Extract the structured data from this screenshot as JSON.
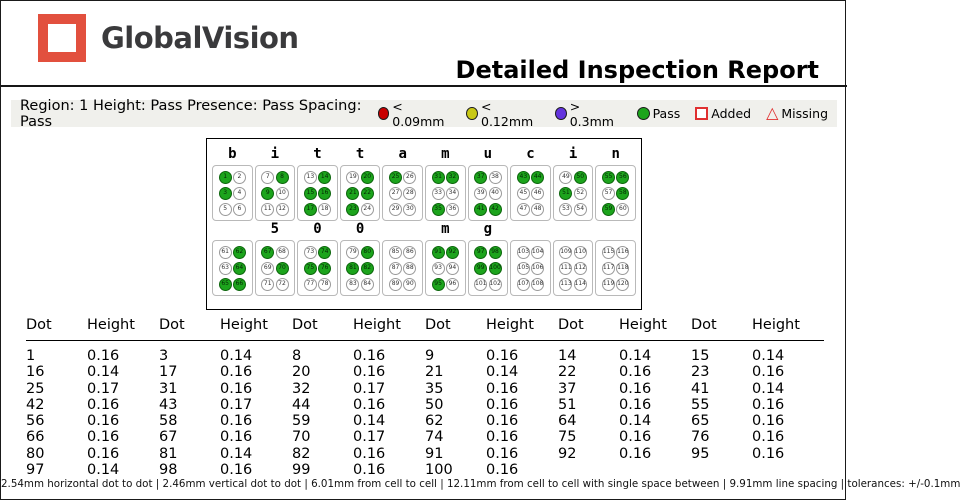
{
  "header": {
    "logo_text": "GlobalVision",
    "title": "Detailed Inspection Report"
  },
  "region_bar": {
    "summary": "Region: 1 Height: Pass Presence: Pass Spacing: Pass",
    "legend": [
      {
        "shape": "circle",
        "color": "#c80000",
        "label": "< 0.09mm"
      },
      {
        "shape": "circle",
        "color": "#c8c814",
        "label": "< 0.12mm"
      },
      {
        "shape": "circle",
        "color": "#6333dd",
        "label": "> 0.3mm"
      },
      {
        "shape": "circle",
        "color": "#1ca41c",
        "label": "Pass"
      },
      {
        "shape": "square",
        "color": "#e03030",
        "label": "Added"
      },
      {
        "shape": "triangle",
        "color": "#e03030",
        "label": "Missing"
      }
    ]
  },
  "braille": {
    "pass_color": "#1ca41c",
    "rows": [
      {
        "cells": [
          {
            "label": "b",
            "start": 1,
            "dots": [
              1,
              3
            ]
          },
          {
            "label": "i",
            "start": 7,
            "dots": [
              8,
              9
            ]
          },
          {
            "label": "t",
            "start": 13,
            "dots": [
              14,
              15,
              16,
              17
            ]
          },
          {
            "label": "t",
            "start": 19,
            "dots": [
              20,
              21,
              22,
              23
            ]
          },
          {
            "label": "a",
            "start": 25,
            "dots": [
              25
            ]
          },
          {
            "label": "m",
            "start": 31,
            "dots": [
              31,
              32,
              35
            ]
          },
          {
            "label": "u",
            "start": 37,
            "dots": [
              37,
              41,
              42
            ]
          },
          {
            "label": "c",
            "start": 43,
            "dots": [
              43,
              44
            ]
          },
          {
            "label": "i",
            "start": 49,
            "dots": [
              50,
              51
            ]
          },
          {
            "label": "n",
            "start": 55,
            "dots": [
              55,
              56,
              58,
              59
            ]
          }
        ]
      },
      {
        "cells": [
          {
            "label": "",
            "start": 61,
            "dots": [
              62,
              64,
              65,
              66
            ]
          },
          {
            "label": "5",
            "start": 67,
            "dots": [
              67,
              70
            ]
          },
          {
            "label": "0",
            "start": 73,
            "dots": [
              74,
              75,
              76
            ]
          },
          {
            "label": "0",
            "start": 79,
            "dots": [
              80,
              81,
              82
            ]
          },
          {
            "label": "",
            "start": 85,
            "dots": []
          },
          {
            "label": "m",
            "start": 91,
            "dots": [
              91,
              92,
              95
            ]
          },
          {
            "label": "g",
            "start": 97,
            "dots": [
              97,
              98,
              99,
              100
            ]
          },
          {
            "label": "",
            "start": 103,
            "dots": []
          },
          {
            "label": "",
            "start": 109,
            "dots": []
          },
          {
            "label": "",
            "start": 115,
            "dots": []
          }
        ]
      }
    ]
  },
  "table": {
    "header_pair": [
      "Dot",
      "Height"
    ],
    "pairs_per_row": 6,
    "rows": [
      [
        "1",
        "0.16",
        "3",
        "0.14",
        "8",
        "0.16",
        "9",
        "0.16",
        "14",
        "0.14",
        "15",
        "0.14"
      ],
      [
        "16",
        "0.14",
        "17",
        "0.16",
        "20",
        "0.16",
        "21",
        "0.14",
        "22",
        "0.16",
        "23",
        "0.16"
      ],
      [
        "25",
        "0.17",
        "31",
        "0.16",
        "32",
        "0.17",
        "35",
        "0.16",
        "37",
        "0.16",
        "41",
        "0.14"
      ],
      [
        "42",
        "0.16",
        "43",
        "0.17",
        "44",
        "0.16",
        "50",
        "0.16",
        "51",
        "0.16",
        "55",
        "0.16"
      ],
      [
        "56",
        "0.16",
        "58",
        "0.16",
        "59",
        "0.14",
        "62",
        "0.16",
        "64",
        "0.14",
        "65",
        "0.16"
      ],
      [
        "66",
        "0.16",
        "67",
        "0.16",
        "70",
        "0.17",
        "74",
        "0.16",
        "75",
        "0.16",
        "76",
        "0.16"
      ],
      [
        "80",
        "0.16",
        "81",
        "0.14",
        "82",
        "0.16",
        "91",
        "0.16",
        "92",
        "0.16",
        "95",
        "0.16"
      ],
      [
        "97",
        "0.14",
        "98",
        "0.16",
        "99",
        "0.16",
        "100",
        "0.16",
        "",
        "",
        "",
        ""
      ]
    ]
  },
  "footer": {
    "text": "2.54mm horizontal dot to dot  |  2.46mm vertical dot to dot  |  6.01mm from cell to cell  |  12.11mm from cell to cell with single space between  |  9.91mm line spacing  |  tolerances: +/-0.1mm"
  }
}
